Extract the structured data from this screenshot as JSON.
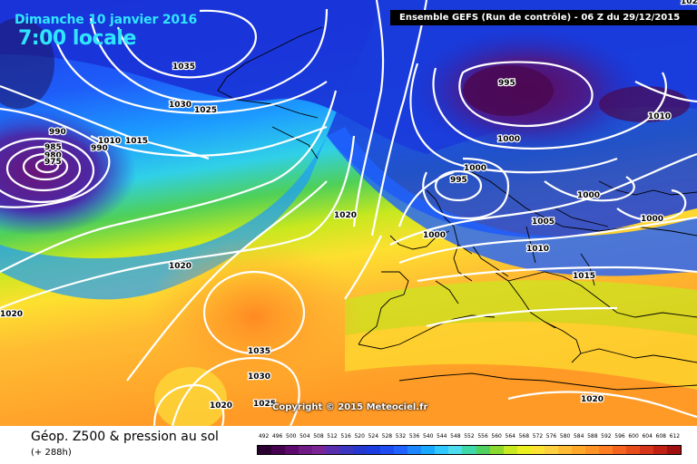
{
  "header": {
    "date_line": "Dimanche 10 janvier 2016",
    "time_line": "7:00 locale",
    "run_info": "Ensemble GEFS   (Run de contrôle)  -  06 Z du 29/12/2015"
  },
  "map": {
    "copyright": "Copyright © 2015 Meteociel.fr",
    "isobar_labels": [
      "1035",
      "1030",
      "1025",
      "990",
      "985",
      "980",
      "975",
      "1010",
      "990",
      "1015",
      "1020",
      "1020",
      "1020",
      "1035",
      "1030",
      "1020",
      "1025",
      "1025",
      "995",
      "1000",
      "1000",
      "995",
      "1000",
      "1005",
      "1010",
      "1000",
      "1000",
      "1010",
      "1015",
      "1020"
    ],
    "isobar_color": "#ffffff",
    "land_outline_color": "#000000"
  },
  "legend": {
    "title": "Géop. Z500 & pression au sol",
    "forecast_hours": "(+ 288h)",
    "scale_values": [
      "492",
      "496",
      "500",
      "504",
      "508",
      "512",
      "516",
      "520",
      "524",
      "528",
      "532",
      "536",
      "540",
      "544",
      "548",
      "552",
      "556",
      "560",
      "564",
      "568",
      "572",
      "576",
      "580",
      "584",
      "588",
      "592",
      "596",
      "600",
      "604",
      "608",
      "612"
    ],
    "scale_colors": [
      "#2a0030",
      "#45004f",
      "#5c0a6e",
      "#701a86",
      "#7a2596",
      "#5a2dae",
      "#3b35c0",
      "#2438d0",
      "#1b3de0",
      "#1e4cf2",
      "#1f62ff",
      "#1c86ff",
      "#19a8ff",
      "#2fc8ff",
      "#4ddcee",
      "#3fd8a8",
      "#4fd060",
      "#8ad830",
      "#c8e820",
      "#ecf020",
      "#fde232",
      "#ffd040",
      "#ffbc34",
      "#ffa82a",
      "#ff9426",
      "#ff7e22",
      "#f4641e",
      "#e84c1a",
      "#d63418",
      "#c02014",
      "#a01010"
    ]
  }
}
